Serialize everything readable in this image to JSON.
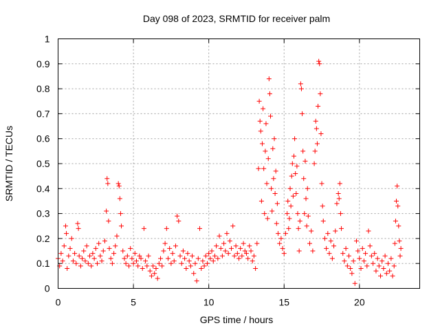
{
  "chart_data": {
    "type": "scatter",
    "title": "Day 098 of 2023, SRMTID for receiver palm",
    "xlabel": "GPS time / hours",
    "ylabel": "SRMTID / TECUs",
    "xlim": [
      0,
      24
    ],
    "ylim": [
      0,
      1
    ],
    "xticks": [
      0,
      5,
      10,
      15,
      20
    ],
    "xtick_labels": [
      "0",
      "5",
      "10",
      "15",
      "20"
    ],
    "yticks": [
      0,
      0.1,
      0.2,
      0.3,
      0.4,
      0.5,
      0.6,
      0.7,
      0.8,
      0.9,
      1
    ],
    "ytick_labels": [
      "0",
      "0.1",
      "0.2",
      "0.3",
      "0.4",
      "0.5",
      "0.6",
      "0.7",
      "0.8",
      "0.9",
      "1"
    ],
    "grid": true,
    "marker": "plus",
    "color": "#ff0000",
    "series": [
      {
        "name": "SRMTID",
        "points": [
          [
            0.0,
            0.12
          ],
          [
            0.1,
            0.09
          ],
          [
            0.2,
            0.14
          ],
          [
            0.3,
            0.11
          ],
          [
            0.4,
            0.17
          ],
          [
            0.5,
            0.25
          ],
          [
            0.55,
            0.22
          ],
          [
            0.6,
            0.08
          ],
          [
            0.7,
            0.13
          ],
          [
            0.8,
            0.16
          ],
          [
            0.9,
            0.2
          ],
          [
            1.0,
            0.11
          ],
          [
            1.1,
            0.14
          ],
          [
            1.2,
            0.1
          ],
          [
            1.3,
            0.26
          ],
          [
            1.35,
            0.24
          ],
          [
            1.4,
            0.13
          ],
          [
            1.5,
            0.09
          ],
          [
            1.6,
            0.12
          ],
          [
            1.7,
            0.15
          ],
          [
            1.8,
            0.11
          ],
          [
            1.9,
            0.17
          ],
          [
            2.0,
            0.1
          ],
          [
            2.1,
            0.13
          ],
          [
            2.2,
            0.09
          ],
          [
            2.3,
            0.14
          ],
          [
            2.4,
            0.12
          ],
          [
            2.5,
            0.16
          ],
          [
            2.6,
            0.1
          ],
          [
            2.7,
            0.18
          ],
          [
            2.8,
            0.13
          ],
          [
            2.9,
            0.11
          ],
          [
            3.0,
            0.15
          ],
          [
            3.1,
            0.19
          ],
          [
            3.2,
            0.31
          ],
          [
            3.25,
            0.44
          ],
          [
            3.3,
            0.42
          ],
          [
            3.35,
            0.27
          ],
          [
            3.4,
            0.16
          ],
          [
            3.5,
            0.12
          ],
          [
            3.6,
            0.1
          ],
          [
            3.7,
            0.14
          ],
          [
            3.8,
            0.17
          ],
          [
            3.9,
            0.21
          ],
          [
            4.0,
            0.42
          ],
          [
            4.05,
            0.41
          ],
          [
            4.1,
            0.36
          ],
          [
            4.15,
            0.3
          ],
          [
            4.2,
            0.25
          ],
          [
            4.3,
            0.15
          ],
          [
            4.4,
            0.12
          ],
          [
            4.5,
            0.1
          ],
          [
            4.6,
            0.13
          ],
          [
            4.7,
            0.09
          ],
          [
            4.8,
            0.16
          ],
          [
            4.9,
            0.12
          ],
          [
            5.0,
            0.1
          ],
          [
            5.1,
            0.14
          ],
          [
            5.2,
            0.11
          ],
          [
            5.3,
            0.09
          ],
          [
            5.4,
            0.13
          ],
          [
            5.5,
            0.12
          ],
          [
            5.6,
            0.08
          ],
          [
            5.7,
            0.24
          ],
          [
            5.8,
            0.11
          ],
          [
            5.9,
            0.09
          ],
          [
            6.0,
            0.13
          ],
          [
            6.1,
            0.07
          ],
          [
            6.2,
            0.05
          ],
          [
            6.3,
            0.09
          ],
          [
            6.4,
            0.06
          ],
          [
            6.5,
            0.08
          ],
          [
            6.6,
            0.04
          ],
          [
            6.7,
            0.1
          ],
          [
            6.8,
            0.12
          ],
          [
            6.9,
            0.09
          ],
          [
            7.0,
            0.15
          ],
          [
            7.1,
            0.18
          ],
          [
            7.2,
            0.24
          ],
          [
            7.3,
            0.12
          ],
          [
            7.4,
            0.16
          ],
          [
            7.5,
            0.1
          ],
          [
            7.6,
            0.14
          ],
          [
            7.7,
            0.11
          ],
          [
            7.8,
            0.17
          ],
          [
            7.9,
            0.29
          ],
          [
            8.0,
            0.27
          ],
          [
            8.1,
            0.13
          ],
          [
            8.2,
            0.1
          ],
          [
            8.3,
            0.15
          ],
          [
            8.4,
            0.12
          ],
          [
            8.5,
            0.08
          ],
          [
            8.6,
            0.14
          ],
          [
            8.7,
            0.11
          ],
          [
            8.8,
            0.09
          ],
          [
            8.9,
            0.13
          ],
          [
            9.0,
            0.06
          ],
          [
            9.1,
            0.1
          ],
          [
            9.2,
            0.03
          ],
          [
            9.3,
            0.12
          ],
          [
            9.4,
            0.24
          ],
          [
            9.5,
            0.08
          ],
          [
            9.6,
            0.11
          ],
          [
            9.7,
            0.09
          ],
          [
            9.8,
            0.13
          ],
          [
            9.9,
            0.1
          ],
          [
            10.0,
            0.14
          ],
          [
            10.1,
            0.12
          ],
          [
            10.2,
            0.15
          ],
          [
            10.3,
            0.11
          ],
          [
            10.4,
            0.13
          ],
          [
            10.5,
            0.17
          ],
          [
            10.6,
            0.12
          ],
          [
            10.7,
            0.21
          ],
          [
            10.8,
            0.16
          ],
          [
            10.9,
            0.13
          ],
          [
            11.0,
            0.18
          ],
          [
            11.1,
            0.15
          ],
          [
            11.2,
            0.22
          ],
          [
            11.3,
            0.14
          ],
          [
            11.4,
            0.19
          ],
          [
            11.5,
            0.16
          ],
          [
            11.6,
            0.25
          ],
          [
            11.7,
            0.13
          ],
          [
            11.8,
            0.17
          ],
          [
            11.9,
            0.14
          ],
          [
            12.0,
            0.12
          ],
          [
            12.1,
            0.16
          ],
          [
            12.2,
            0.13
          ],
          [
            12.3,
            0.18
          ],
          [
            12.4,
            0.15
          ],
          [
            12.5,
            0.14
          ],
          [
            12.6,
            0.12
          ],
          [
            12.7,
            0.17
          ],
          [
            12.8,
            0.15
          ],
          [
            12.9,
            0.11
          ],
          [
            13.0,
            0.13
          ],
          [
            13.1,
            0.08
          ],
          [
            13.2,
            0.18
          ],
          [
            13.3,
            0.48
          ],
          [
            13.35,
            0.75
          ],
          [
            13.4,
            0.67
          ],
          [
            13.45,
            0.63
          ],
          [
            13.5,
            0.35
          ],
          [
            13.55,
            0.58
          ],
          [
            13.6,
            0.72
          ],
          [
            13.65,
            0.48
          ],
          [
            13.7,
            0.3
          ],
          [
            13.75,
            0.55
          ],
          [
            13.8,
            0.66
          ],
          [
            13.85,
            0.42
          ],
          [
            13.9,
            0.28
          ],
          [
            13.95,
            0.52
          ],
          [
            14.0,
            0.84
          ],
          [
            14.05,
            0.78
          ],
          [
            14.1,
            0.69
          ],
          [
            14.15,
            0.4
          ],
          [
            14.2,
            0.31
          ],
          [
            14.25,
            0.56
          ],
          [
            14.3,
            0.44
          ],
          [
            14.35,
            0.6
          ],
          [
            14.4,
            0.38
          ],
          [
            14.45,
            0.47
          ],
          [
            14.5,
            0.26
          ],
          [
            14.55,
            0.34
          ],
          [
            14.6,
            0.22
          ],
          [
            14.7,
            0.18
          ],
          [
            14.8,
            0.2
          ],
          [
            14.9,
            0.16
          ],
          [
            15.0,
            0.14
          ],
          [
            15.1,
            0.22
          ],
          [
            15.2,
            0.3
          ],
          [
            15.25,
            0.35
          ],
          [
            15.3,
            0.24
          ],
          [
            15.35,
            0.28
          ],
          [
            15.4,
            0.4
          ],
          [
            15.45,
            0.33
          ],
          [
            15.5,
            0.45
          ],
          [
            15.55,
            0.5
          ],
          [
            15.6,
            0.37
          ],
          [
            15.65,
            0.53
          ],
          [
            15.7,
            0.6
          ],
          [
            15.75,
            0.46
          ],
          [
            15.8,
            0.38
          ],
          [
            15.85,
            0.49
          ],
          [
            15.9,
            0.3
          ],
          [
            15.95,
            0.24
          ],
          [
            16.0,
            0.15
          ],
          [
            16.05,
            0.27
          ],
          [
            16.1,
            0.82
          ],
          [
            16.15,
            0.8
          ],
          [
            16.2,
            0.7
          ],
          [
            16.25,
            0.55
          ],
          [
            16.3,
            0.44
          ],
          [
            16.35,
            0.3
          ],
          [
            16.4,
            0.51
          ],
          [
            16.45,
            0.36
          ],
          [
            16.5,
            0.25
          ],
          [
            16.55,
            0.4
          ],
          [
            16.6,
            0.29
          ],
          [
            16.7,
            0.18
          ],
          [
            16.8,
            0.23
          ],
          [
            16.9,
            0.15
          ],
          [
            17.0,
            0.5
          ],
          [
            17.05,
            0.55
          ],
          [
            17.1,
            0.67
          ],
          [
            17.15,
            0.64
          ],
          [
            17.2,
            0.58
          ],
          [
            17.25,
            0.73
          ],
          [
            17.3,
            0.91
          ],
          [
            17.35,
            0.9
          ],
          [
            17.4,
            0.78
          ],
          [
            17.45,
            0.62
          ],
          [
            17.5,
            0.42
          ],
          [
            17.55,
            0.33
          ],
          [
            17.6,
            0.27
          ],
          [
            17.7,
            0.2
          ],
          [
            17.8,
            0.16
          ],
          [
            17.9,
            0.22
          ],
          [
            18.0,
            0.14
          ],
          [
            18.1,
            0.19
          ],
          [
            18.2,
            0.12
          ],
          [
            18.3,
            0.17
          ],
          [
            18.4,
            0.23
          ],
          [
            18.5,
            0.34
          ],
          [
            18.6,
            0.38
          ],
          [
            18.65,
            0.36
          ],
          [
            18.7,
            0.42
          ],
          [
            18.75,
            0.3
          ],
          [
            18.8,
            0.24
          ],
          [
            18.9,
            0.14
          ],
          [
            19.0,
            0.11
          ],
          [
            19.1,
            0.16
          ],
          [
            19.2,
            0.09
          ],
          [
            19.3,
            0.13
          ],
          [
            19.4,
            0.08
          ],
          [
            19.5,
            0.06
          ],
          [
            19.6,
            0.11
          ],
          [
            19.7,
            0.02
          ],
          [
            19.8,
            0.19
          ],
          [
            19.9,
            0.15
          ],
          [
            20.0,
            0.12
          ],
          [
            20.1,
            0.08
          ],
          [
            20.2,
            0.16
          ],
          [
            20.3,
            0.11
          ],
          [
            20.4,
            0.14
          ],
          [
            20.5,
            0.09
          ],
          [
            20.6,
            0.23
          ],
          [
            20.7,
            0.17
          ],
          [
            20.8,
            0.13
          ],
          [
            20.9,
            0.1
          ],
          [
            21.0,
            0.14
          ],
          [
            21.1,
            0.07
          ],
          [
            21.2,
            0.12
          ],
          [
            21.3,
            0.09
          ],
          [
            21.4,
            0.05
          ],
          [
            21.5,
            0.11
          ],
          [
            21.6,
            0.08
          ],
          [
            21.7,
            0.13
          ],
          [
            21.8,
            0.06
          ],
          [
            21.9,
            0.1
          ],
          [
            22.0,
            0.07
          ],
          [
            22.1,
            0.12
          ],
          [
            22.2,
            0.05
          ],
          [
            22.3,
            0.09
          ],
          [
            22.35,
            0.18
          ],
          [
            22.4,
            0.27
          ],
          [
            22.45,
            0.35
          ],
          [
            22.5,
            0.41
          ],
          [
            22.55,
            0.33
          ],
          [
            22.6,
            0.25
          ],
          [
            22.65,
            0.19
          ],
          [
            22.7,
            0.13
          ],
          [
            22.75,
            0.16
          ]
        ]
      }
    ]
  }
}
